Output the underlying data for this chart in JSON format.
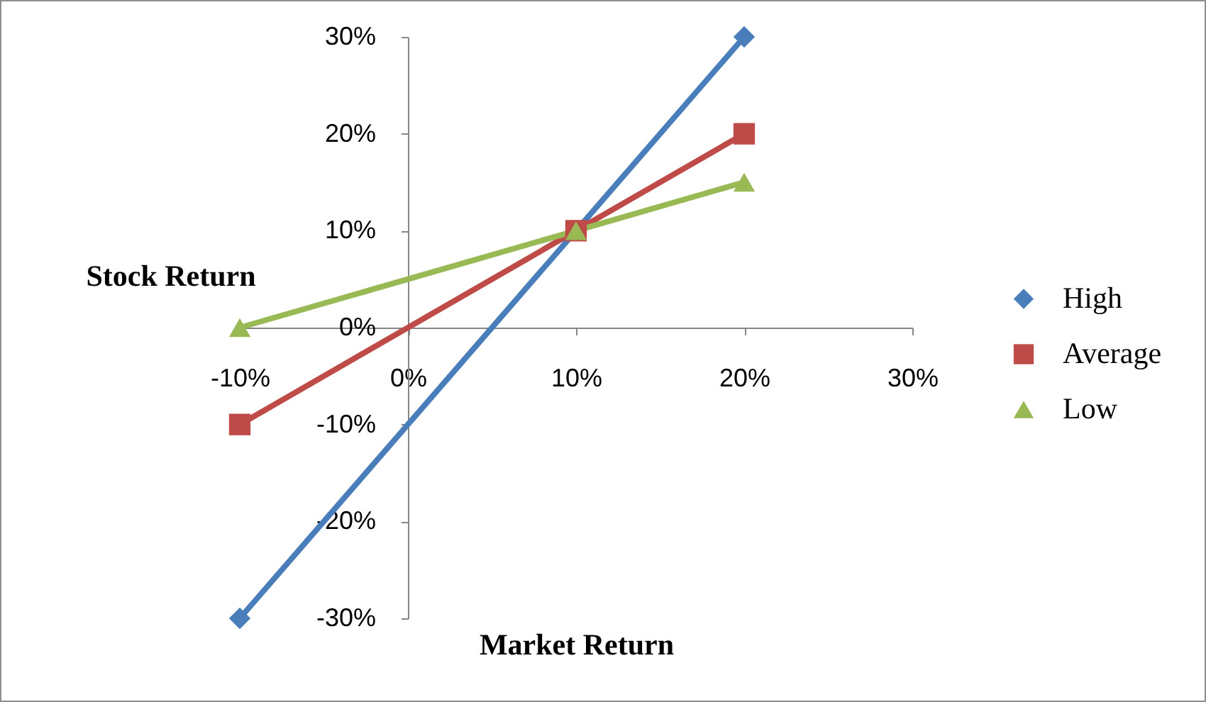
{
  "chart_data": {
    "type": "line",
    "xlabel": "Market Return",
    "ylabel": "Stock Return",
    "x": [
      -10,
      10,
      20
    ],
    "xlim": [
      -10,
      30
    ],
    "xticks": [
      {
        "value": -10,
        "label": "-10%"
      },
      {
        "value": 0,
        "label": "0%"
      },
      {
        "value": 10,
        "label": "10%"
      },
      {
        "value": 20,
        "label": "20%"
      },
      {
        "value": 30,
        "label": "30%"
      }
    ],
    "ylim": [
      -30,
      30
    ],
    "yticks": [
      {
        "value": -30,
        "label": "-30%"
      },
      {
        "value": -20,
        "label": "-20%"
      },
      {
        "value": -10,
        "label": "-10%"
      },
      {
        "value": 0,
        "label": "0%"
      },
      {
        "value": 10,
        "label": "10%"
      },
      {
        "value": 20,
        "label": "20%"
      },
      {
        "value": 30,
        "label": "30%"
      }
    ],
    "legend": "right",
    "series": [
      {
        "name": "High",
        "color": "#4a7ebb",
        "marker": "diamond",
        "values": [
          -30,
          10,
          30
        ]
      },
      {
        "name": "Average",
        "color": "#be4b48",
        "marker": "square",
        "values": [
          -10,
          10,
          20
        ]
      },
      {
        "name": "Low",
        "color": "#98b954",
        "marker": "triangle",
        "values": [
          0,
          10,
          15
        ]
      }
    ]
  }
}
